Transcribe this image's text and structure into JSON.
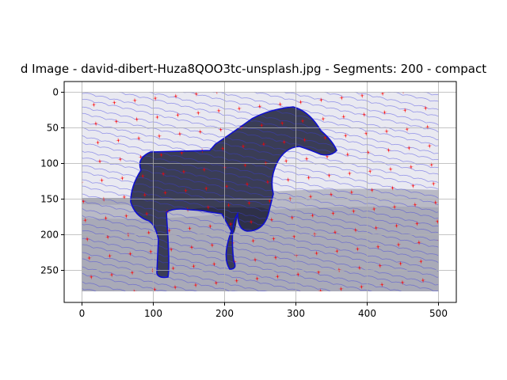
{
  "figure": {
    "title": "d Image - david-dibert-Huza8QOO3tc-unsplash.jpg - Segments: 200 - compact"
  },
  "chart_data": {
    "type": "image",
    "title": "d Image - david-dibert-Huza8QOO3tc-unsplash.jpg - Segments: 200 - compact",
    "xlabel": "",
    "ylabel": "",
    "xlim": [
      -25,
      525
    ],
    "ylim": [
      295,
      -15
    ],
    "image_extent": {
      "x": [
        0,
        500
      ],
      "y": [
        280,
        0
      ]
    },
    "xticks": [
      0,
      100,
      200,
      300,
      400,
      500
    ],
    "yticks": [
      0,
      50,
      100,
      150,
      200,
      250
    ],
    "grid": true,
    "segments": 200,
    "colors": {
      "boundary": "#ff0000",
      "flow_lines": "#2a2ae0",
      "background_light": "#e8e8f0",
      "background_lower": "#a9aab7",
      "subject_dark": "#3a3d55"
    }
  }
}
